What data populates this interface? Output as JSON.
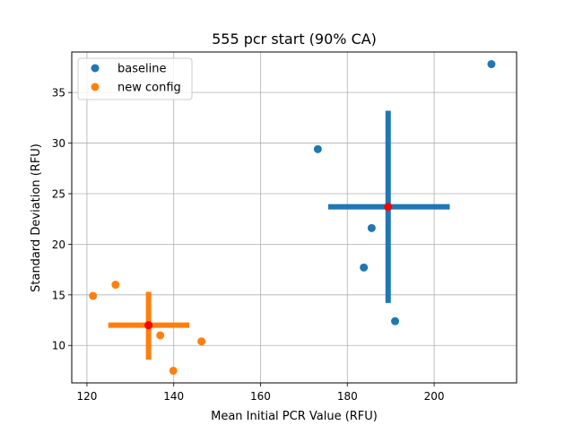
{
  "chart_data": {
    "type": "scatter",
    "title": "555 pcr start (90% CA)",
    "xlabel": "Mean Initial PCR Value (RFU)",
    "ylabel": "Standard Deviation (RFU)",
    "xlim": [
      116.5,
      219
    ],
    "ylim": [
      6.3,
      39
    ],
    "xticks": [
      120,
      140,
      160,
      180,
      200
    ],
    "yticks": [
      10,
      15,
      20,
      25,
      30,
      35
    ],
    "grid": true,
    "legend_position": "top-left",
    "series": [
      {
        "name": "baseline",
        "color": "#1f77b4",
        "points": [
          {
            "x": 213.2,
            "y": 37.8
          },
          {
            "x": 173.2,
            "y": 29.4
          },
          {
            "x": 185.6,
            "y": 21.6
          },
          {
            "x": 183.8,
            "y": 17.7
          },
          {
            "x": 191.0,
            "y": 12.4
          }
        ],
        "center": {
          "x": 189.4,
          "y": 23.7
        },
        "hbar": [
          175.6,
          203.6
        ],
        "vbar": [
          14.2,
          33.2
        ]
      },
      {
        "name": "new config",
        "color": "#ff7f0e",
        "points": [
          {
            "x": 121.4,
            "y": 14.9
          },
          {
            "x": 126.6,
            "y": 16.0
          },
          {
            "x": 136.9,
            "y": 11.0
          },
          {
            "x": 146.4,
            "y": 10.4
          },
          {
            "x": 139.9,
            "y": 7.5
          }
        ],
        "center": {
          "x": 134.2,
          "y": 12.0
        },
        "hbar": [
          124.9,
          143.6
        ],
        "vbar": [
          8.6,
          15.3
        ]
      }
    ],
    "center_marker_color": "#ff0000"
  }
}
